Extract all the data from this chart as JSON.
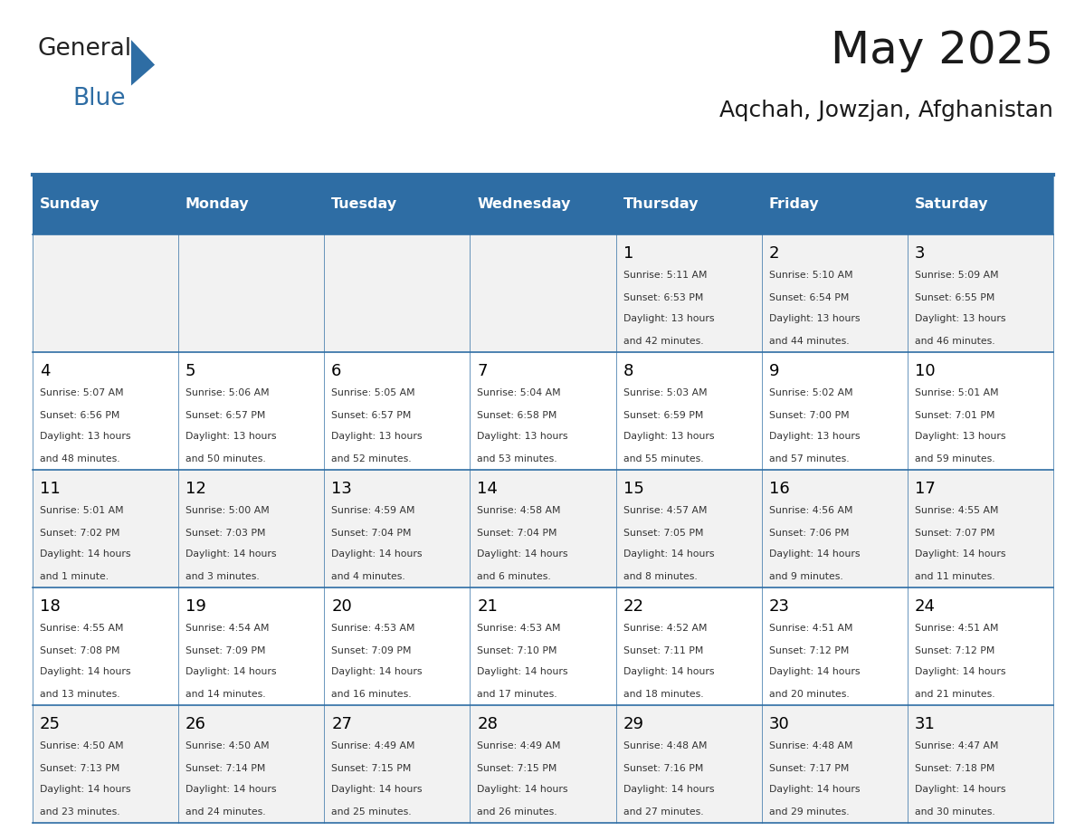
{
  "title": "May 2025",
  "subtitle": "Aqchah, Jowzjan, Afghanistan",
  "header_bg": "#2E6DA4",
  "header_text": "#FFFFFF",
  "row_bg_even": "#F2F2F2",
  "row_bg_odd": "#FFFFFF",
  "cell_text": "#000000",
  "day_number_color": "#000000",
  "header_line_color": "#2E6DA4",
  "days_of_week": [
    "Sunday",
    "Monday",
    "Tuesday",
    "Wednesday",
    "Thursday",
    "Friday",
    "Saturday"
  ],
  "weeks": [
    [
      {
        "day": "",
        "sunrise": "",
        "sunset": "",
        "daylight": ""
      },
      {
        "day": "",
        "sunrise": "",
        "sunset": "",
        "daylight": ""
      },
      {
        "day": "",
        "sunrise": "",
        "sunset": "",
        "daylight": ""
      },
      {
        "day": "",
        "sunrise": "",
        "sunset": "",
        "daylight": ""
      },
      {
        "day": "1",
        "sunrise": "Sunrise: 5:11 AM",
        "sunset": "Sunset: 6:53 PM",
        "daylight": "Daylight: 13 hours and 42 minutes."
      },
      {
        "day": "2",
        "sunrise": "Sunrise: 5:10 AM",
        "sunset": "Sunset: 6:54 PM",
        "daylight": "Daylight: 13 hours and 44 minutes."
      },
      {
        "day": "3",
        "sunrise": "Sunrise: 5:09 AM",
        "sunset": "Sunset: 6:55 PM",
        "daylight": "Daylight: 13 hours and 46 minutes."
      }
    ],
    [
      {
        "day": "4",
        "sunrise": "Sunrise: 5:07 AM",
        "sunset": "Sunset: 6:56 PM",
        "daylight": "Daylight: 13 hours and 48 minutes."
      },
      {
        "day": "5",
        "sunrise": "Sunrise: 5:06 AM",
        "sunset": "Sunset: 6:57 PM",
        "daylight": "Daylight: 13 hours and 50 minutes."
      },
      {
        "day": "6",
        "sunrise": "Sunrise: 5:05 AM",
        "sunset": "Sunset: 6:57 PM",
        "daylight": "Daylight: 13 hours and 52 minutes."
      },
      {
        "day": "7",
        "sunrise": "Sunrise: 5:04 AM",
        "sunset": "Sunset: 6:58 PM",
        "daylight": "Daylight: 13 hours and 53 minutes."
      },
      {
        "day": "8",
        "sunrise": "Sunrise: 5:03 AM",
        "sunset": "Sunset: 6:59 PM",
        "daylight": "Daylight: 13 hours and 55 minutes."
      },
      {
        "day": "9",
        "sunrise": "Sunrise: 5:02 AM",
        "sunset": "Sunset: 7:00 PM",
        "daylight": "Daylight: 13 hours and 57 minutes."
      },
      {
        "day": "10",
        "sunrise": "Sunrise: 5:01 AM",
        "sunset": "Sunset: 7:01 PM",
        "daylight": "Daylight: 13 hours and 59 minutes."
      }
    ],
    [
      {
        "day": "11",
        "sunrise": "Sunrise: 5:01 AM",
        "sunset": "Sunset: 7:02 PM",
        "daylight": "Daylight: 14 hours and 1 minute."
      },
      {
        "day": "12",
        "sunrise": "Sunrise: 5:00 AM",
        "sunset": "Sunset: 7:03 PM",
        "daylight": "Daylight: 14 hours and 3 minutes."
      },
      {
        "day": "13",
        "sunrise": "Sunrise: 4:59 AM",
        "sunset": "Sunset: 7:04 PM",
        "daylight": "Daylight: 14 hours and 4 minutes."
      },
      {
        "day": "14",
        "sunrise": "Sunrise: 4:58 AM",
        "sunset": "Sunset: 7:04 PM",
        "daylight": "Daylight: 14 hours and 6 minutes."
      },
      {
        "day": "15",
        "sunrise": "Sunrise: 4:57 AM",
        "sunset": "Sunset: 7:05 PM",
        "daylight": "Daylight: 14 hours and 8 minutes."
      },
      {
        "day": "16",
        "sunrise": "Sunrise: 4:56 AM",
        "sunset": "Sunset: 7:06 PM",
        "daylight": "Daylight: 14 hours and 9 minutes."
      },
      {
        "day": "17",
        "sunrise": "Sunrise: 4:55 AM",
        "sunset": "Sunset: 7:07 PM",
        "daylight": "Daylight: 14 hours and 11 minutes."
      }
    ],
    [
      {
        "day": "18",
        "sunrise": "Sunrise: 4:55 AM",
        "sunset": "Sunset: 7:08 PM",
        "daylight": "Daylight: 14 hours and 13 minutes."
      },
      {
        "day": "19",
        "sunrise": "Sunrise: 4:54 AM",
        "sunset": "Sunset: 7:09 PM",
        "daylight": "Daylight: 14 hours and 14 minutes."
      },
      {
        "day": "20",
        "sunrise": "Sunrise: 4:53 AM",
        "sunset": "Sunset: 7:09 PM",
        "daylight": "Daylight: 14 hours and 16 minutes."
      },
      {
        "day": "21",
        "sunrise": "Sunrise: 4:53 AM",
        "sunset": "Sunset: 7:10 PM",
        "daylight": "Daylight: 14 hours and 17 minutes."
      },
      {
        "day": "22",
        "sunrise": "Sunrise: 4:52 AM",
        "sunset": "Sunset: 7:11 PM",
        "daylight": "Daylight: 14 hours and 18 minutes."
      },
      {
        "day": "23",
        "sunrise": "Sunrise: 4:51 AM",
        "sunset": "Sunset: 7:12 PM",
        "daylight": "Daylight: 14 hours and 20 minutes."
      },
      {
        "day": "24",
        "sunrise": "Sunrise: 4:51 AM",
        "sunset": "Sunset: 7:12 PM",
        "daylight": "Daylight: 14 hours and 21 minutes."
      }
    ],
    [
      {
        "day": "25",
        "sunrise": "Sunrise: 4:50 AM",
        "sunset": "Sunset: 7:13 PM",
        "daylight": "Daylight: 14 hours and 23 minutes."
      },
      {
        "day": "26",
        "sunrise": "Sunrise: 4:50 AM",
        "sunset": "Sunset: 7:14 PM",
        "daylight": "Daylight: 14 hours and 24 minutes."
      },
      {
        "day": "27",
        "sunrise": "Sunrise: 4:49 AM",
        "sunset": "Sunset: 7:15 PM",
        "daylight": "Daylight: 14 hours and 25 minutes."
      },
      {
        "day": "28",
        "sunrise": "Sunrise: 4:49 AM",
        "sunset": "Sunset: 7:15 PM",
        "daylight": "Daylight: 14 hours and 26 minutes."
      },
      {
        "day": "29",
        "sunrise": "Sunrise: 4:48 AM",
        "sunset": "Sunset: 7:16 PM",
        "daylight": "Daylight: 14 hours and 27 minutes."
      },
      {
        "day": "30",
        "sunrise": "Sunrise: 4:48 AM",
        "sunset": "Sunset: 7:17 PM",
        "daylight": "Daylight: 14 hours and 29 minutes."
      },
      {
        "day": "31",
        "sunrise": "Sunrise: 4:47 AM",
        "sunset": "Sunset: 7:18 PM",
        "daylight": "Daylight: 14 hours and 30 minutes."
      }
    ]
  ]
}
